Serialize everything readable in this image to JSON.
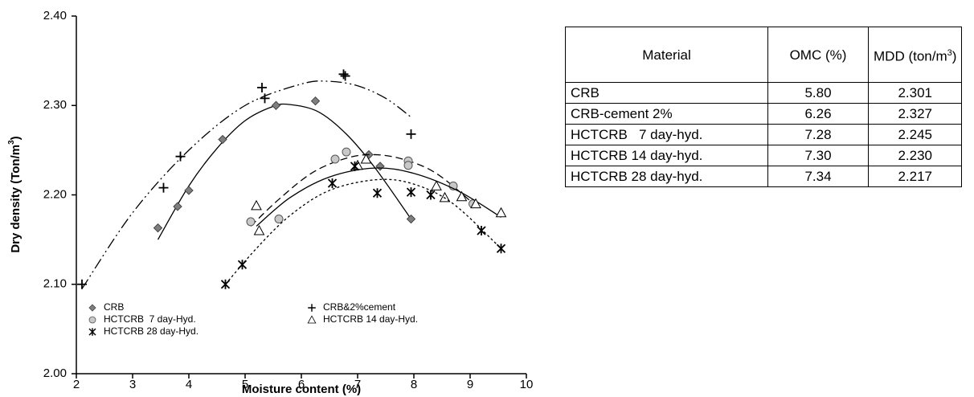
{
  "chart_data": {
    "type": "scatter",
    "x_label": "Moisture content (%)",
    "y_label": {
      "text": "Dry density (Ton/m",
      "sup": "3",
      "end": ")"
    },
    "xlim": [
      2,
      10
    ],
    "xticks": [
      2,
      3,
      4,
      5,
      6,
      7,
      8,
      9,
      10
    ],
    "ylim": [
      2.0,
      2.4
    ],
    "yticks": [
      {
        "value": 2.0,
        "label": "2.00"
      },
      {
        "value": 2.1,
        "label": "2.10"
      },
      {
        "value": 2.2,
        "label": "2.20"
      },
      {
        "value": 2.3,
        "label": "2.30"
      },
      {
        "value": 2.4,
        "label": "2.40"
      }
    ],
    "legend": "lower left",
    "series": [
      {
        "name": "CRB",
        "marker": "diamond",
        "color": "#7f7f7f",
        "x": [
          3.45,
          3.8,
          4.0,
          4.6,
          5.55,
          6.25,
          7.2,
          7.4,
          7.95
        ],
        "values": [
          2.163,
          2.187,
          2.205,
          2.262,
          2.3,
          2.305,
          2.245,
          2.232,
          2.173
        ],
        "fit": {
          "line_style": "solid",
          "x": [
            3.45,
            4,
            4.5,
            5,
            5.5,
            5.8,
            6.3,
            6.8,
            7.3,
            7.95
          ],
          "values": [
            2.15,
            2.21,
            2.252,
            2.283,
            2.299,
            2.301,
            2.293,
            2.268,
            2.231,
            2.173
          ]
        }
      },
      {
        "name": "CRB&2%cement",
        "marker": "plus",
        "color": "#000000",
        "x": [
          2.1,
          3.55,
          3.85,
          5.3,
          5.35,
          6.75,
          6.78,
          7.95
        ],
        "values": [
          2.1,
          2.208,
          2.243,
          2.32,
          2.308,
          2.335,
          2.333,
          2.268
        ],
        "fit": {
          "line_style": "dash-dot-dot",
          "x": [
            2.1,
            3,
            4,
            5,
            6,
            6.5,
            7,
            7.5,
            7.95
          ],
          "values": [
            2.095,
            2.18,
            2.25,
            2.3,
            2.324,
            2.327,
            2.322,
            2.308,
            2.287
          ]
        }
      },
      {
        "name": "HCTCRB  7 day-Hyd.",
        "marker": "circle",
        "color": "#c8c8c8",
        "x": [
          5.1,
          5.6,
          6.6,
          6.8,
          7.9,
          7.9,
          8.7,
          9.05
        ],
        "values": [
          2.17,
          2.173,
          2.24,
          2.248,
          2.238,
          2.233,
          2.21,
          2.19
        ],
        "fit": {
          "line_style": "dash",
          "x": [
            5.1,
            5.6,
            6.2,
            6.8,
            7.28,
            7.8,
            8.4,
            9.1
          ],
          "values": [
            2.165,
            2.195,
            2.225,
            2.241,
            2.245,
            2.24,
            2.224,
            2.188
          ]
        }
      },
      {
        "name": "HCTCRB 14 day-Hyd.",
        "marker": "triangle",
        "color": "#ffffff",
        "x": [
          5.2,
          5.25,
          7.0,
          7.15,
          8.4,
          8.55,
          8.85,
          9.1,
          9.55
        ],
        "values": [
          2.188,
          2.16,
          2.233,
          2.24,
          2.21,
          2.197,
          2.198,
          2.19,
          2.18
        ],
        "fit": {
          "line_style": "solid",
          "x": [
            5.2,
            5.8,
            6.5,
            7.3,
            8,
            8.8,
            9.55
          ],
          "values": [
            2.165,
            2.197,
            2.22,
            2.23,
            2.224,
            2.204,
            2.175
          ]
        }
      },
      {
        "name": "HCTCRB 28 day-Hyd.",
        "marker": "asterisk",
        "color": "#000000",
        "x": [
          4.65,
          4.95,
          6.55,
          6.95,
          7.35,
          7.95,
          8.3,
          9.2,
          9.55
        ],
        "values": [
          2.1,
          2.122,
          2.213,
          2.232,
          2.202,
          2.203,
          2.2,
          2.16,
          2.14
        ],
        "fit": {
          "line_style": "dot",
          "x": [
            4.65,
            5.2,
            5.8,
            6.5,
            7.34,
            8,
            8.7,
            9.55
          ],
          "values": [
            2.1,
            2.14,
            2.177,
            2.205,
            2.217,
            2.212,
            2.19,
            2.14
          ]
        }
      }
    ]
  },
  "table": {
    "header": [
      "Material",
      "OMC (%)",
      {
        "text": "MDD (ton/m",
        "sup": "3",
        "end": ")"
      }
    ],
    "rows": [
      [
        "CRB",
        "5.80",
        "2.301"
      ],
      [
        "CRB-cement 2%",
        "6.26",
        "2.327"
      ],
      [
        "HCTCRB   7 day-hyd.",
        "7.28",
        "2.245"
      ],
      [
        "HCTCRB 14 day-hyd.",
        "7.30",
        "2.230"
      ],
      [
        "HCTCRB 28 day-hyd.",
        "7.34",
        "2.217"
      ]
    ]
  }
}
